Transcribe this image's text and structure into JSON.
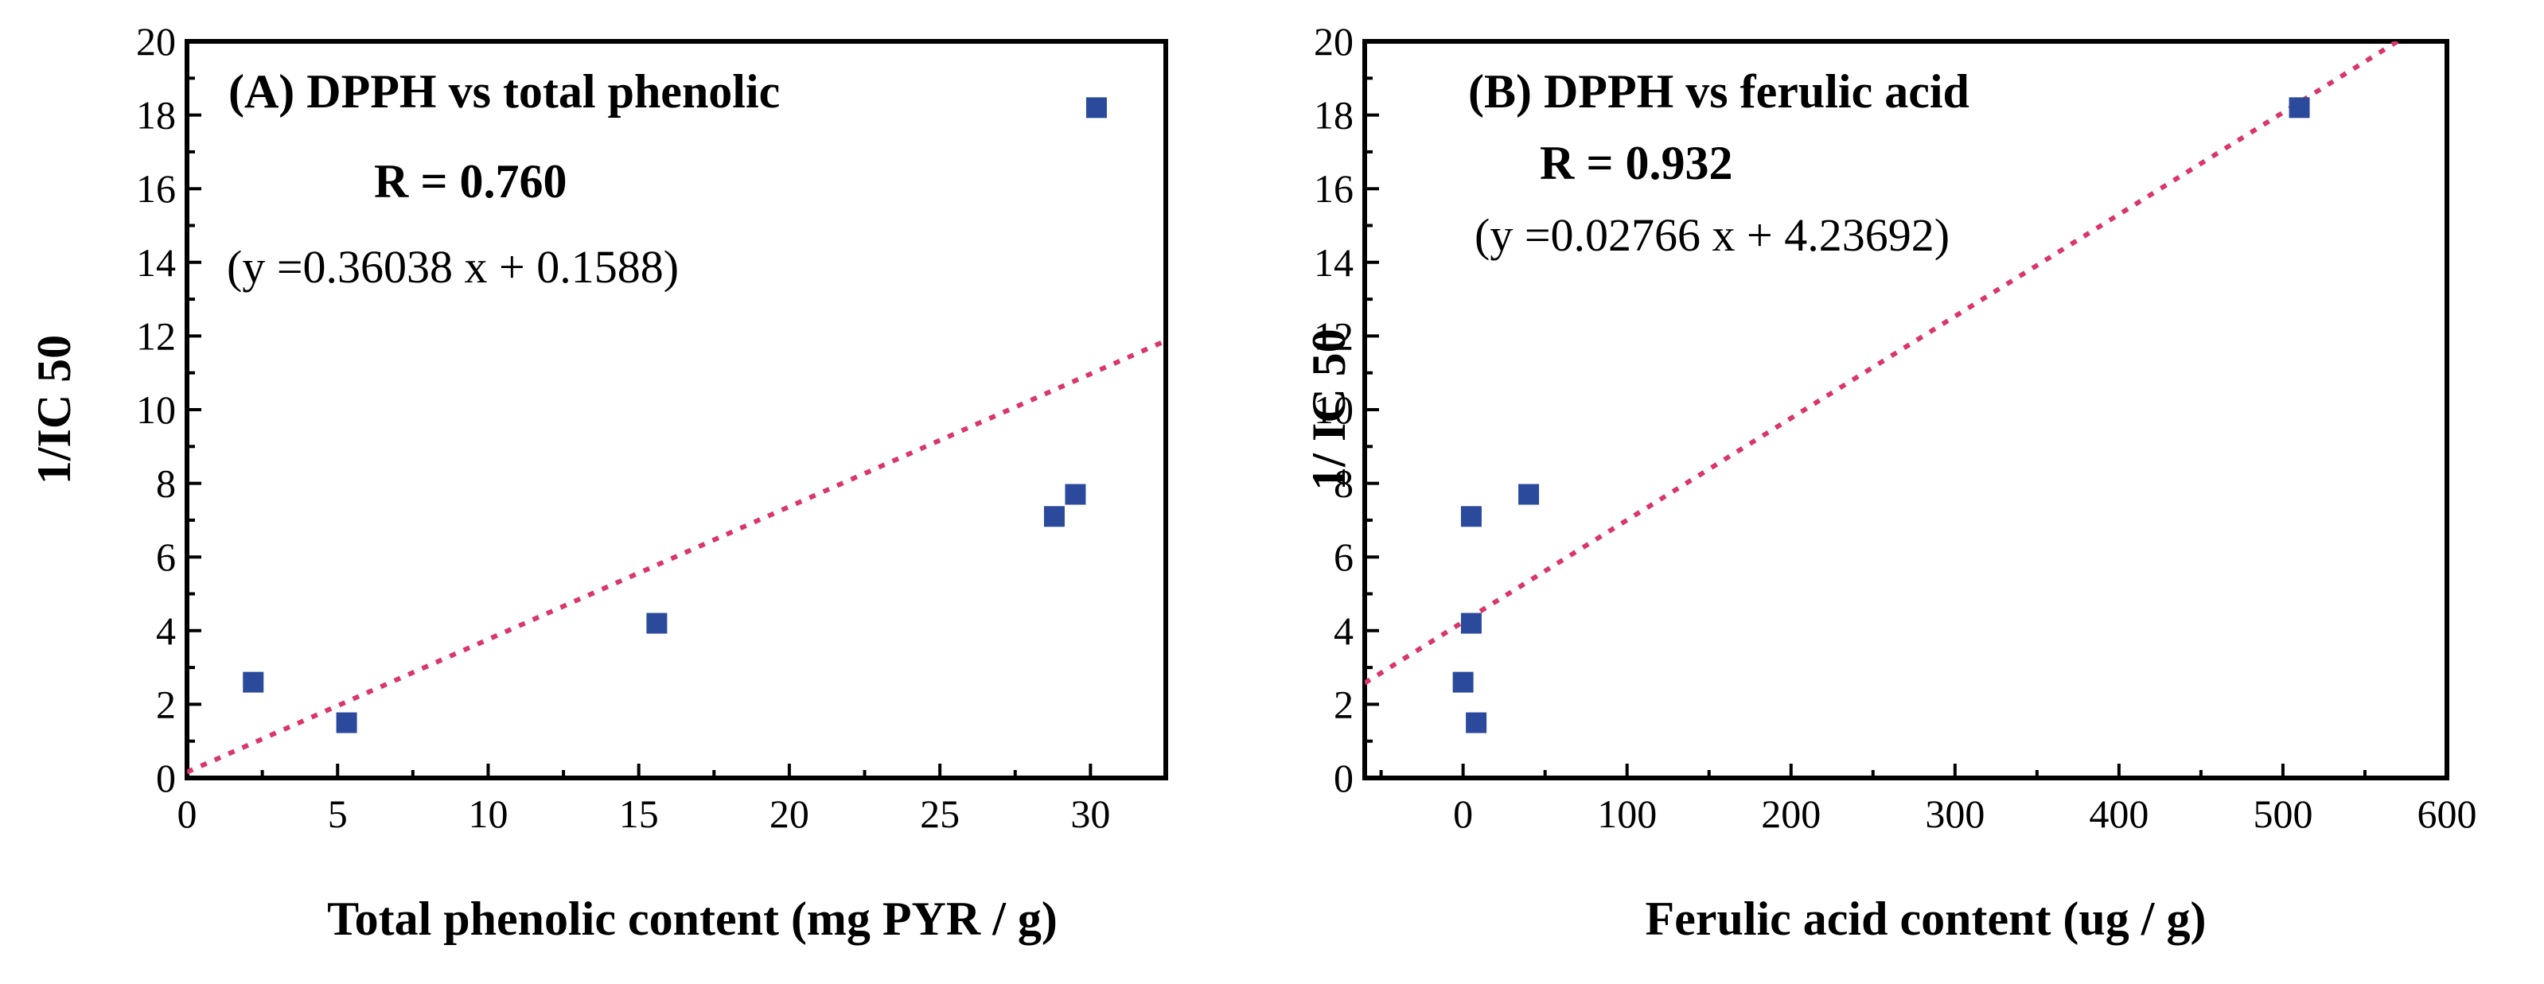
{
  "chart_data": [
    {
      "type": "scatter",
      "title": "(A) DPPH vs total phenolic",
      "r_text": "R = 0.760",
      "equation_text": "(y =0.36038 x + 0.1588)",
      "fit": {
        "slope": 0.36038,
        "intercept": 0.1588
      },
      "xlabel": "Total phenolic content  (mg PYR / g)",
      "ylabel": "1/IC 50",
      "xlim": [
        0,
        32.5
      ],
      "ylim": [
        0,
        20
      ],
      "xticks": [
        0,
        5,
        10,
        15,
        20,
        25,
        30
      ],
      "yticks": [
        0,
        2,
        4,
        6,
        8,
        10,
        12,
        14,
        16,
        18,
        20
      ],
      "points": [
        {
          "x": 2.2,
          "y": 2.6
        },
        {
          "x": 5.3,
          "y": 1.5
        },
        {
          "x": 15.6,
          "y": 4.2
        },
        {
          "x": 28.8,
          "y": 7.1
        },
        {
          "x": 29.5,
          "y": 7.7
        },
        {
          "x": 30.2,
          "y": 18.2
        }
      ],
      "marker_color": "#2b4a9b",
      "line_color": "#d9366b"
    },
    {
      "type": "scatter",
      "title": "(B) DPPH vs ferulic acid",
      "r_text": "R = 0.932",
      "equation_text": "(y =0.02766 x + 4.23692)",
      "fit": {
        "slope": 0.02766,
        "intercept": 4.23692
      },
      "xlabel": "Ferulic acid content   (ug / g)",
      "ylabel": "1/ IC 50",
      "xlim": [
        -60,
        600
      ],
      "ylim": [
        0,
        20
      ],
      "xticks": [
        0,
        100,
        200,
        300,
        400,
        500,
        600
      ],
      "yticks": [
        0,
        2,
        4,
        6,
        8,
        10,
        12,
        14,
        16,
        18,
        20
      ],
      "points": [
        {
          "x": 0,
          "y": 2.6
        },
        {
          "x": 5,
          "y": 4.2
        },
        {
          "x": 5,
          "y": 7.1
        },
        {
          "x": 8,
          "y": 1.5
        },
        {
          "x": 40,
          "y": 7.7
        },
        {
          "x": 510,
          "y": 18.2
        }
      ],
      "marker_color": "#2b4a9b",
      "line_color": "#d9366b"
    }
  ]
}
